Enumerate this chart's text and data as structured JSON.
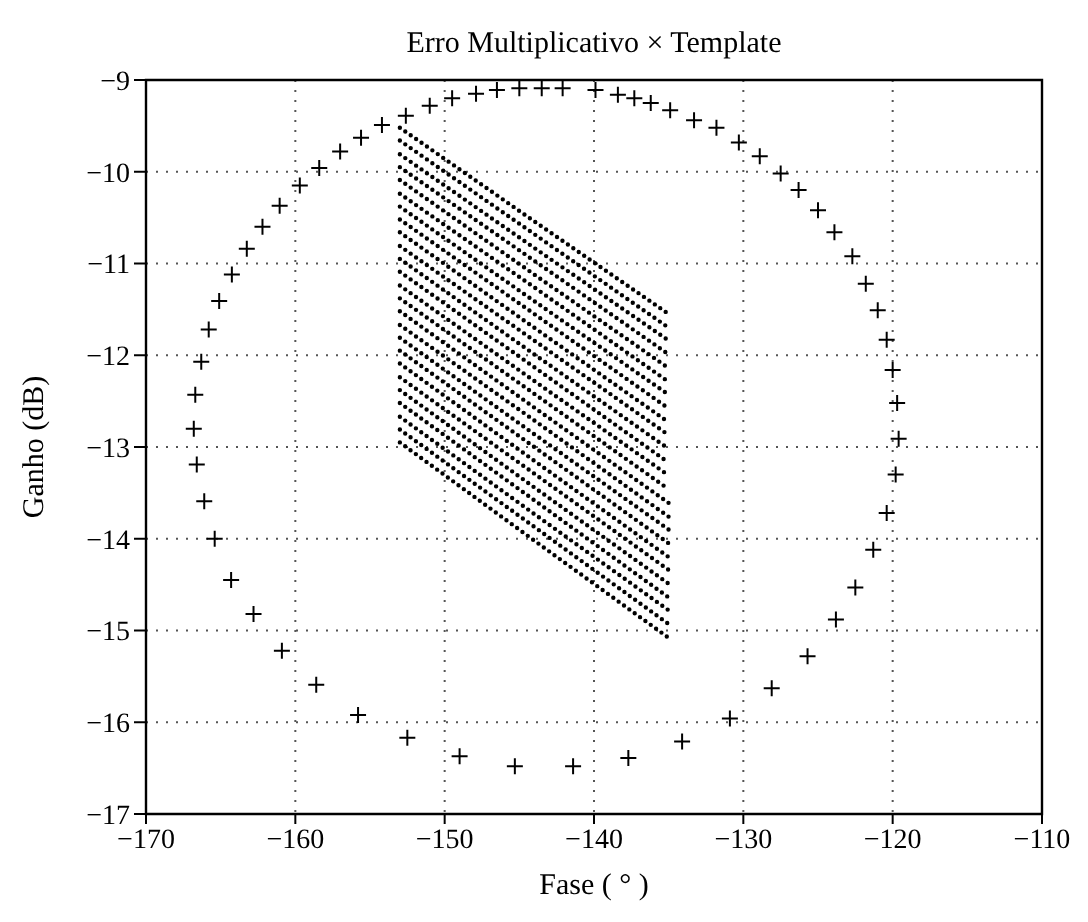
{
  "chart_data": {
    "type": "scatter",
    "title": "Erro Multiplicativo × Template",
    "xlabel": "Fase ( ° )",
    "ylabel": "Ganho (dB)",
    "xlim": [
      -170,
      -110
    ],
    "xticks": [
      -170,
      -160,
      -150,
      -140,
      -130,
      -120,
      -110
    ],
    "ylim": [
      -17,
      -9
    ],
    "yticks": [
      -17,
      -16,
      -15,
      -14,
      -13,
      -12,
      -11,
      -10,
      -9
    ],
    "grid": true,
    "legend": false,
    "line_style": "dotted",
    "series": [
      {
        "marker": "cross",
        "color": "#000000",
        "x": [
          -165.1,
          -164.25,
          -163.25,
          -162.2,
          -161.05,
          -159.7,
          -158.4,
          -157.0,
          -155.6,
          -154.2,
          -152.6,
          -151.0,
          -149.5,
          -147.9,
          -146.5,
          -145.0,
          -143.5,
          -142.1,
          -139.9,
          -138.4,
          -137.3,
          -136.2,
          -134.9,
          -133.3,
          -131.8,
          -130.3,
          -128.9,
          -127.5,
          -126.3,
          -125.0,
          -123.9,
          -122.7,
          -121.8,
          -121.0,
          -120.4,
          -120.0,
          -119.7,
          -119.6,
          -119.8,
          -120.4,
          -121.3,
          -122.5,
          -123.8,
          -125.7,
          -128.1,
          -130.9,
          -134.1,
          -137.7,
          -141.4,
          -145.3,
          -149.0,
          -152.5,
          -155.8,
          -158.6,
          -160.9,
          -162.8,
          -164.3,
          -165.4,
          -166.1,
          -166.6,
          -166.8,
          -166.7,
          -166.3,
          -165.8
        ],
        "values": [
          -11.41,
          -11.12,
          -10.84,
          -10.6,
          -10.37,
          -10.15,
          -9.96,
          -9.78,
          -9.63,
          -9.49,
          -9.39,
          -9.28,
          -9.2,
          -9.15,
          -9.11,
          -9.09,
          -9.09,
          -9.09,
          -9.11,
          -9.16,
          -9.2,
          -9.25,
          -9.33,
          -9.44,
          -9.52,
          -9.68,
          -9.83,
          -10.02,
          -10.2,
          -10.42,
          -10.66,
          -10.92,
          -11.22,
          -11.51,
          -11.83,
          -12.16,
          -12.52,
          -12.91,
          -13.3,
          -13.72,
          -14.12,
          -14.53,
          -14.88,
          -15.28,
          -15.63,
          -15.96,
          -16.21,
          -16.39,
          -16.48,
          -16.48,
          -16.37,
          -16.17,
          -15.92,
          -15.59,
          -15.22,
          -14.82,
          -14.45,
          -14.0,
          -13.59,
          -13.19,
          -12.8,
          -12.43,
          -12.07,
          -11.72
        ]
      },
      {
        "type": "line",
        "color": "#000000",
        "x": [
          -153,
          -144,
          -135
        ],
        "values": [
          -9.52,
          -10.54,
          -11.55
        ]
      },
      {
        "type": "line",
        "color": "#000000",
        "x": [
          -153,
          -144,
          -135
        ],
        "values": [
          -9.66,
          -10.68,
          -11.7
        ]
      },
      {
        "type": "line",
        "color": "#000000",
        "x": [
          -153,
          -144,
          -135
        ],
        "values": [
          -9.81,
          -10.83,
          -11.84
        ]
      },
      {
        "type": "line",
        "color": "#000000",
        "x": [
          -153,
          -144,
          -135
        ],
        "values": [
          -9.95,
          -10.97,
          -11.99
        ]
      },
      {
        "type": "line",
        "color": "#000000",
        "x": [
          -153,
          -144,
          -135
        ],
        "values": [
          -10.09,
          -11.12,
          -12.14
        ]
      },
      {
        "type": "line",
        "color": "#000000",
        "x": [
          -153,
          -144,
          -135
        ],
        "values": [
          -10.24,
          -11.26,
          -12.29
        ]
      },
      {
        "type": "line",
        "color": "#000000",
        "x": [
          -153,
          -144,
          -135
        ],
        "values": [
          -10.38,
          -11.41,
          -12.43
        ]
      },
      {
        "type": "line",
        "color": "#000000",
        "x": [
          -153,
          -144,
          -135
        ],
        "values": [
          -10.52,
          -11.55,
          -12.58
        ]
      },
      {
        "type": "line",
        "color": "#000000",
        "x": [
          -153,
          -144,
          -135
        ],
        "values": [
          -10.66,
          -11.7,
          -12.73
        ]
      },
      {
        "type": "line",
        "color": "#000000",
        "x": [
          -153,
          -144,
          -135
        ],
        "values": [
          -10.81,
          -11.84,
          -12.87
        ]
      },
      {
        "type": "line",
        "color": "#000000",
        "x": [
          -153,
          -144,
          -135
        ],
        "values": [
          -10.95,
          -11.99,
          -13.02
        ]
      },
      {
        "type": "line",
        "color": "#000000",
        "x": [
          -153,
          -144,
          -135
        ],
        "values": [
          -11.09,
          -12.13,
          -13.17
        ]
      },
      {
        "type": "line",
        "color": "#000000",
        "x": [
          -153,
          -144,
          -135
        ],
        "values": [
          -11.24,
          -12.28,
          -13.31
        ]
      },
      {
        "type": "line",
        "color": "#000000",
        "x": [
          -153,
          -144,
          -135
        ],
        "values": [
          -11.38,
          -12.42,
          -13.46
        ]
      },
      {
        "type": "line",
        "color": "#000000",
        "x": [
          -153,
          -144,
          -135
        ],
        "values": [
          -11.52,
          -12.57,
          -13.61
        ]
      },
      {
        "type": "line",
        "color": "#000000",
        "x": [
          -153,
          -144,
          -135
        ],
        "values": [
          -11.67,
          -12.71,
          -13.76
        ]
      },
      {
        "type": "line",
        "color": "#000000",
        "x": [
          -153,
          -144,
          -135
        ],
        "values": [
          -11.81,
          -12.86,
          -13.9
        ]
      },
      {
        "type": "line",
        "color": "#000000",
        "x": [
          -153,
          -144,
          -135
        ],
        "values": [
          -11.95,
          -13.0,
          -14.05
        ]
      },
      {
        "type": "line",
        "color": "#000000",
        "x": [
          -153,
          -144,
          -135
        ],
        "values": [
          -12.09,
          -13.15,
          -14.2
        ]
      },
      {
        "type": "line",
        "color": "#000000",
        "x": [
          -153,
          -144,
          -135
        ],
        "values": [
          -12.24,
          -13.29,
          -14.34
        ]
      },
      {
        "type": "line",
        "color": "#000000",
        "x": [
          -153,
          -144,
          -135
        ],
        "values": [
          -12.38,
          -13.44,
          -14.49
        ]
      },
      {
        "type": "line",
        "color": "#000000",
        "x": [
          -153,
          -144,
          -135
        ],
        "values": [
          -12.52,
          -13.58,
          -14.64
        ]
      },
      {
        "type": "line",
        "color": "#000000",
        "x": [
          -153,
          -144,
          -135
        ],
        "values": [
          -12.67,
          -13.73,
          -14.78
        ]
      },
      {
        "type": "line",
        "color": "#000000",
        "x": [
          -153,
          -144,
          -135
        ],
        "values": [
          -12.81,
          -13.87,
          -14.93
        ]
      },
      {
        "type": "line",
        "color": "#000000",
        "x": [
          -153,
          -144,
          -135
        ],
        "values": [
          -12.95,
          -14.02,
          -15.08
        ]
      }
    ]
  }
}
